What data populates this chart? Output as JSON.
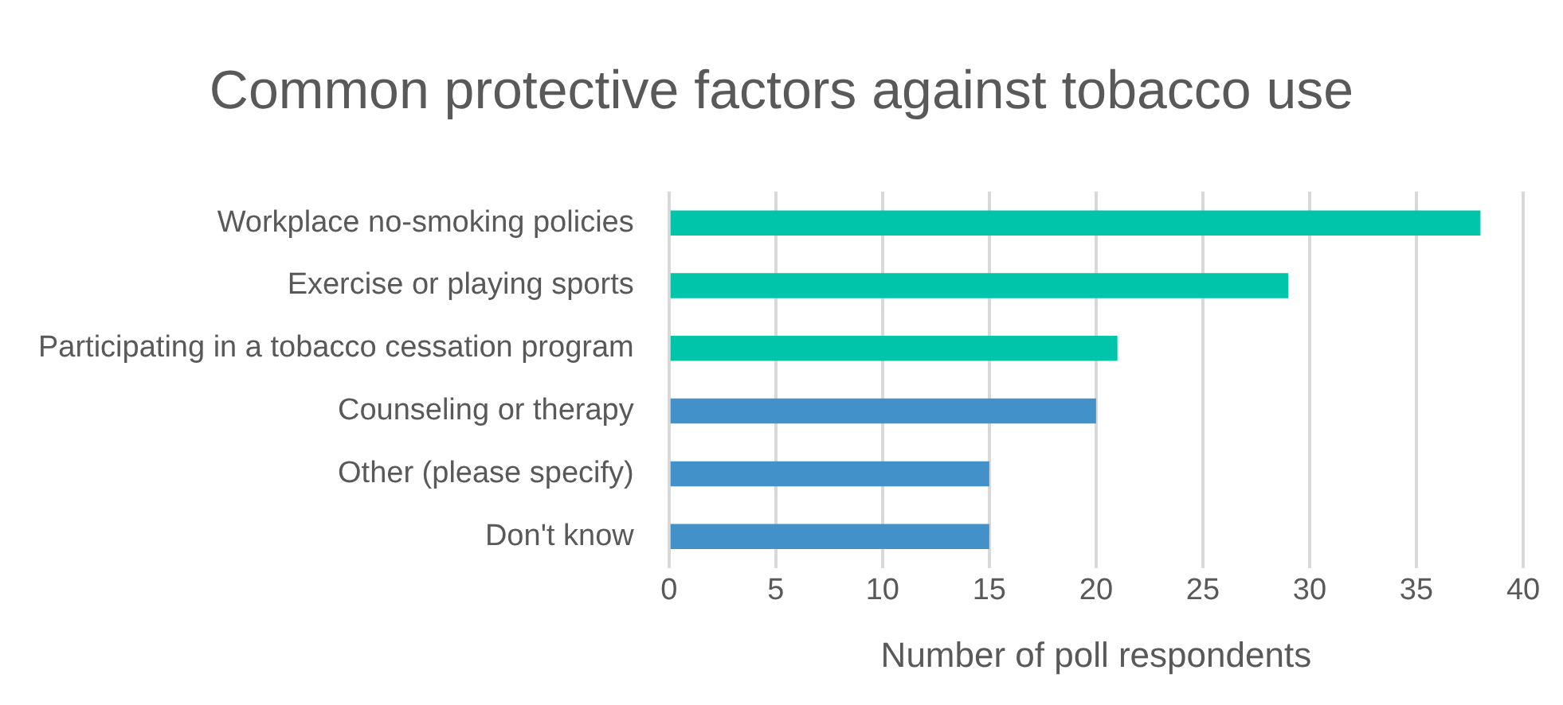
{
  "chart_data": {
    "type": "bar",
    "orientation": "horizontal",
    "title": "Common protective factors against tobacco use",
    "xlabel": "Number of poll respondents",
    "categories": [
      "Workplace no-smoking policies",
      "Exercise or playing sports",
      "Participating in a tobacco cessation program",
      "Counseling or therapy",
      "Other (please specify)",
      "Don't know"
    ],
    "values": [
      38,
      29,
      21,
      20,
      15,
      15
    ],
    "colors": [
      "#00c5aa",
      "#00c5aa",
      "#00c5aa",
      "#4391c9",
      "#4391c9",
      "#4391c9"
    ],
    "xlim": [
      0,
      40
    ],
    "xticks": [
      0,
      5,
      10,
      15,
      20,
      25,
      30,
      35,
      40
    ],
    "grid": "x",
    "legend": false
  }
}
